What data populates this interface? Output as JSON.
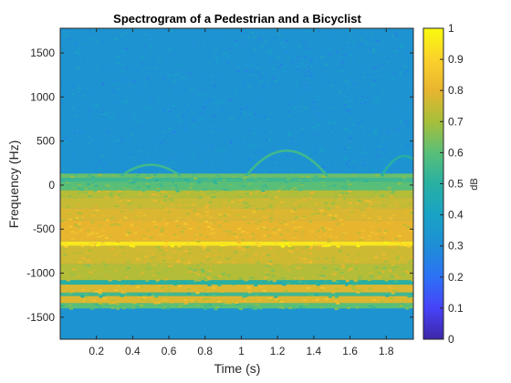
{
  "chart_data": {
    "type": "heatmap",
    "title": "Spectrogram of a Pedestrian and a Bicyclist",
    "xlabel": "Time (s)",
    "ylabel": "Frequency (Hz)",
    "xlim": [
      0,
      1.95
    ],
    "ylim": [
      -1750,
      1780
    ],
    "x_ticks": [
      0.2,
      0.4,
      0.6,
      0.8,
      1,
      1.2,
      1.4,
      1.6,
      1.8
    ],
    "y_ticks": [
      1500,
      1000,
      500,
      0,
      -500,
      -1000,
      -1500
    ],
    "colorbar": {
      "label": "dB",
      "range": [
        0,
        1
      ],
      "ticks": [
        0,
        0.1,
        0.2,
        0.3,
        0.4,
        0.5,
        0.6,
        0.7,
        0.8,
        0.9,
        1
      ],
      "colormap": "parula",
      "colors": [
        "#3e26a8",
        "#4743f8",
        "#2d71f6",
        "#1e8ed6",
        "#19a3c5",
        "#28b0a2",
        "#59bf78",
        "#a6bf3a",
        "#e8b52f",
        "#fbd12b",
        "#f9fb0e"
      ]
    },
    "background_level": 0.33,
    "bands": [
      {
        "f_low": 80,
        "f_high": 130,
        "level": 0.62
      },
      {
        "f_low": 40,
        "f_high": 80,
        "level": 0.55
      },
      {
        "f_low": -60,
        "f_high": 40,
        "level": 0.6
      },
      {
        "f_low": -140,
        "f_high": -60,
        "level": 0.72
      },
      {
        "f_low": -260,
        "f_high": -140,
        "level": 0.75
      },
      {
        "f_low": -400,
        "f_high": -260,
        "level": 0.78
      },
      {
        "f_low": -640,
        "f_high": -400,
        "level": 0.8
      },
      {
        "f_low": -690,
        "f_high": -640,
        "level": 0.95
      },
      {
        "f_low": -900,
        "f_high": -690,
        "level": 0.76
      },
      {
        "f_low": -1080,
        "f_high": -900,
        "level": 0.72
      },
      {
        "f_low": -1130,
        "f_high": -1080,
        "level": 0.5
      },
      {
        "f_low": -1220,
        "f_high": -1130,
        "level": 0.78
      },
      {
        "f_low": -1260,
        "f_high": -1220,
        "level": 0.55
      },
      {
        "f_low": -1340,
        "f_high": -1260,
        "level": 0.78
      },
      {
        "f_low": -1400,
        "f_high": -1340,
        "level": 0.6
      }
    ],
    "micro_doppler_arcs": [
      {
        "t_center": 0.5,
        "t_width": 0.33,
        "peak_hz": 230,
        "base_hz": 100,
        "level": 0.55
      },
      {
        "t_center": 1.25,
        "t_width": 0.45,
        "peak_hz": 390,
        "base_hz": 100,
        "level": 0.55
      },
      {
        "t_center": 1.9,
        "t_width": 0.25,
        "peak_hz": 330,
        "base_hz": 100,
        "level": 0.5
      }
    ]
  }
}
